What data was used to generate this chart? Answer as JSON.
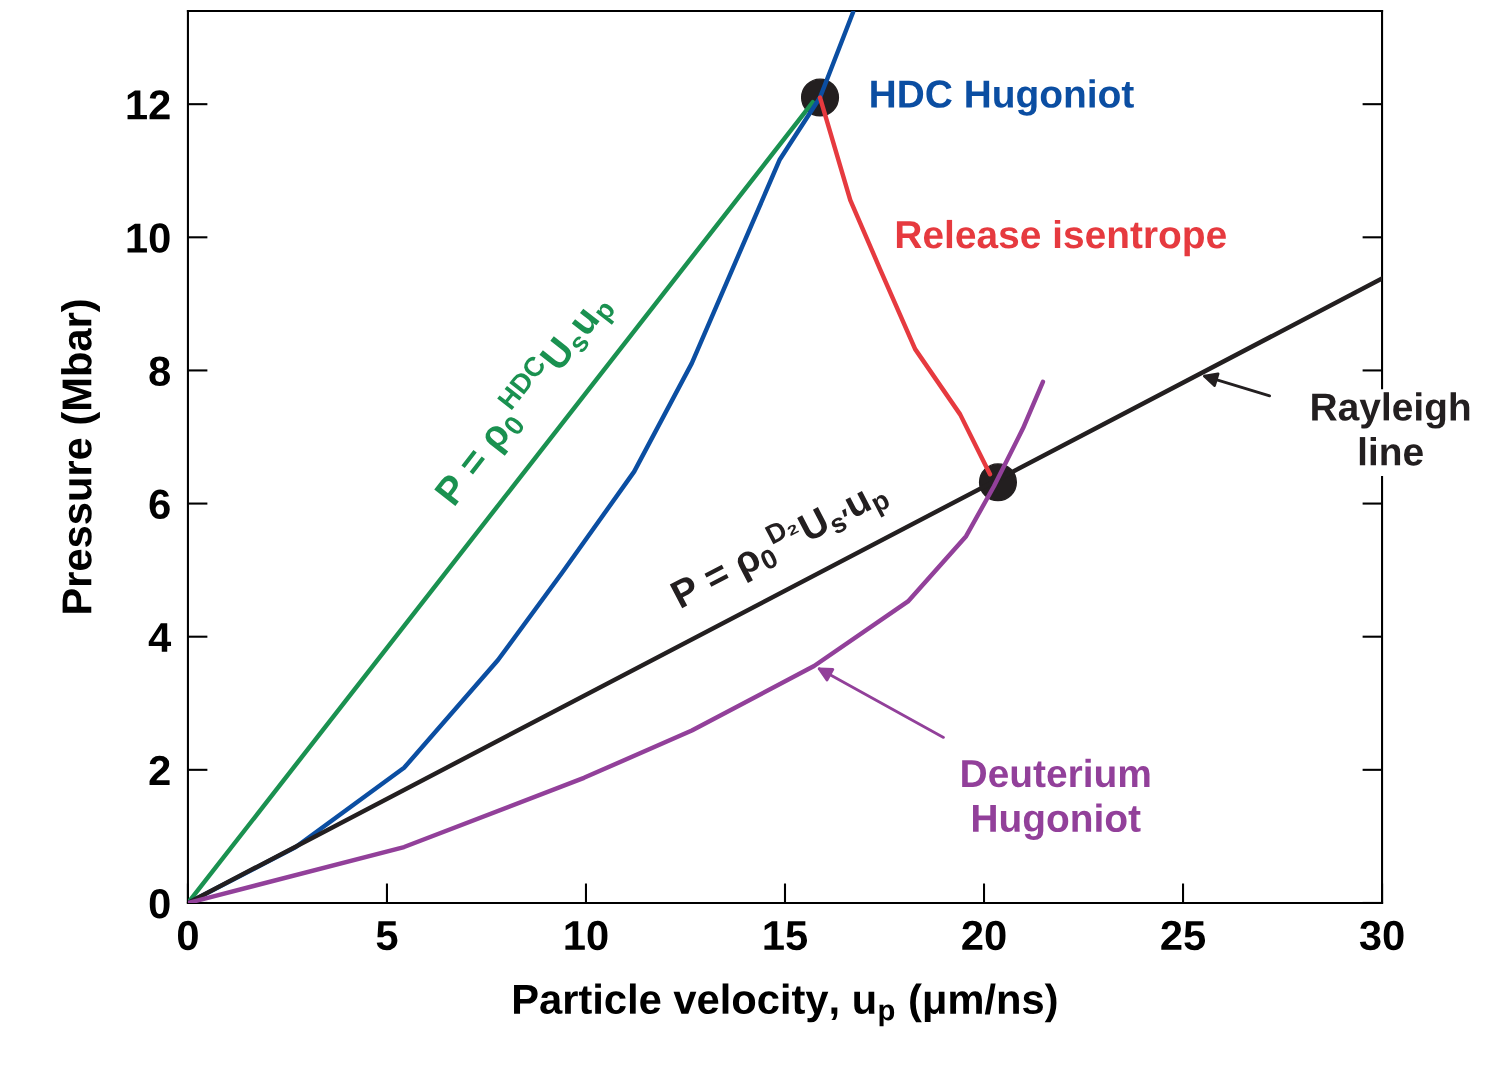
{
  "chart_data": {
    "type": "line",
    "xlabel": "Particle velocity, u$_{p}$ (μm/ns)",
    "ylabel": "Pressure (Mbar)",
    "xlim": [
      0,
      30
    ],
    "xticks": [
      0,
      5,
      10,
      15,
      20,
      25,
      30
    ],
    "ylim": [
      0,
      13.4
    ],
    "yticks": [
      0,
      2,
      4,
      6,
      8,
      10,
      12
    ],
    "grid": false,
    "line_style": "solid",
    "marker": "none",
    "series": [
      {
        "color": "#1a9150",
        "x": [
          0,
          15.7
        ],
        "values": [
          0,
          12.03
        ]
      },
      {
        "color": "#0b4ea2",
        "x": [
          0,
          2.71,
          5.43,
          7.79,
          9.4,
          11.21,
          12.66,
          14.87,
          15.88,
          16.71
        ],
        "values": [
          0,
          0.84,
          2.03,
          3.65,
          4.96,
          6.48,
          8.11,
          11.17,
          12.1,
          13.38
        ]
      },
      {
        "color": "#231f20",
        "x": [
          0,
          30
        ],
        "values": [
          0,
          9.38
        ]
      },
      {
        "color": "#e63a3f",
        "x": [
          15.88,
          16.64,
          17.39,
          18.27,
          19.4,
          20.15
        ],
        "values": [
          12.1,
          10.56,
          9.52,
          8.32,
          7.34,
          6.44
        ]
      },
      {
        "color": "#92409a",
        "x": [
          0,
          5.43,
          9.95,
          12.66,
          15.73,
          18.09,
          19.55,
          20.25,
          20.98,
          21.48
        ],
        "values": [
          0,
          0.84,
          1.88,
          2.59,
          3.56,
          4.53,
          5.51,
          6.26,
          7.13,
          7.83
        ]
      },
      {
        "type": "scatter",
        "marker": "circle",
        "color": "#231f20",
        "x": [
          15.88,
          20.35
        ],
        "values": [
          12.1,
          6.32
        ]
      }
    ],
    "annotations": [
      {
        "text": "HDC Hugoniot",
        "x": 15.88,
        "y": 12.1
      },
      {
        "text": "Release isentrope",
        "x": 18.27,
        "y": 8.32
      },
      {
        "text": "Rayleigh\nline",
        "x": 25.4,
        "y": 7.94
      },
      {
        "text": "Deuterium\nHugoniot",
        "x": 15.73,
        "y": 3.56
      },
      "P = ρ$_{0}$$^{HDC}$U$_{s}$u$_{p}$",
      "P = ρ$_{0}$$^{D₂}$U$_{s′}$u$_{p}$"
    ]
  }
}
